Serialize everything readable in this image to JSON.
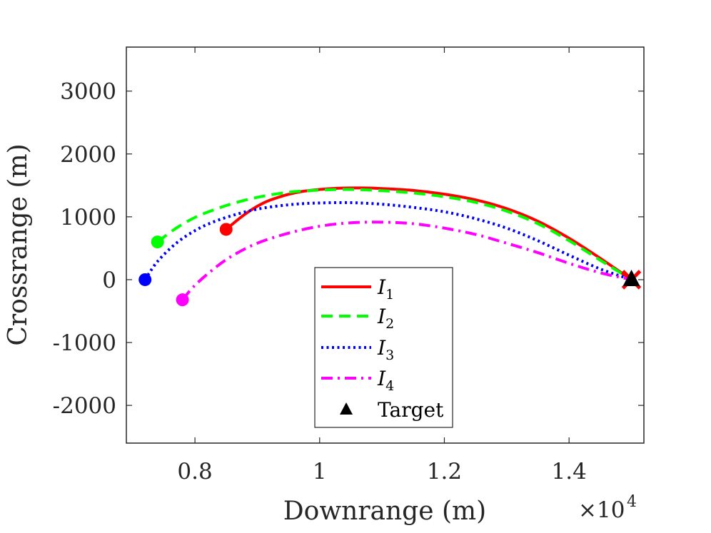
{
  "chart_data": {
    "type": "line",
    "xlabel": "Downrange (m)",
    "ylabel": "Crossrange (m)",
    "x_exponent_label": "×10",
    "x_exponent_power": "4",
    "xlim": [
      6900,
      15200
    ],
    "ylim": [
      -2600,
      3700
    ],
    "xticks": [
      8000,
      10000,
      12000,
      14000
    ],
    "xtick_labels": [
      "0.8",
      "1",
      "1.2",
      "1.4"
    ],
    "yticks": [
      -2000,
      -1000,
      0,
      1000,
      2000,
      3000
    ],
    "ytick_labels": [
      "-2000",
      "-1000",
      "0",
      "1000",
      "2000",
      "3000"
    ],
    "legend_position": "lower-center",
    "series": [
      {
        "name": "I",
        "subscript": "1",
        "color": "#ff0000",
        "style": "solid",
        "x": [
          8500,
          8800,
          9100,
          9400,
          9700,
          10000,
          10300,
          10600,
          11000,
          11500,
          12000,
          12500,
          13000,
          13500,
          14000,
          14500,
          15000
        ],
        "y": [
          800,
          1040,
          1220,
          1330,
          1400,
          1435,
          1455,
          1460,
          1450,
          1420,
          1360,
          1270,
          1130,
          930,
          660,
          340,
          0
        ]
      },
      {
        "name": "I",
        "subscript": "2",
        "color": "#00ff00",
        "style": "dashed",
        "x": [
          7400,
          7700,
          8000,
          8300,
          8600,
          9000,
          9500,
          10000,
          10500,
          11000,
          11500,
          12000,
          12500,
          13000,
          13500,
          14000,
          14500,
          15000
        ],
        "y": [
          600,
          820,
          990,
          1110,
          1210,
          1310,
          1390,
          1425,
          1435,
          1415,
          1380,
          1320,
          1230,
          1090,
          890,
          620,
          310,
          0
        ]
      },
      {
        "name": "I",
        "subscript": "3",
        "color": "#0000ff",
        "style": "dotted",
        "x": [
          7200,
          7400,
          7700,
          8000,
          8300,
          8700,
          9100,
          9600,
          10000,
          10500,
          11000,
          11500,
          12000,
          12500,
          13000,
          13500,
          14000,
          14500,
          15000
        ],
        "y": [
          0,
          290,
          580,
          780,
          920,
          1050,
          1140,
          1200,
          1220,
          1225,
          1200,
          1150,
          1080,
          970,
          820,
          620,
          390,
          170,
          0
        ]
      },
      {
        "name": "I",
        "subscript": "4",
        "color": "#ff00ff",
        "style": "dashdot",
        "x": [
          7800,
          8000,
          8300,
          8600,
          9000,
          9500,
          10000,
          10500,
          11000,
          11500,
          12000,
          12500,
          13000,
          13500,
          14000,
          14500,
          15000
        ],
        "y": [
          -320,
          -90,
          170,
          380,
          580,
          740,
          850,
          905,
          915,
          890,
          820,
          720,
          580,
          430,
          260,
          110,
          0
        ]
      }
    ],
    "start_markers": [
      {
        "series": 1,
        "x": 8500,
        "y": 800,
        "color": "#ff0000"
      },
      {
        "series": 2,
        "x": 7400,
        "y": 600,
        "color": "#00ff00"
      },
      {
        "series": 3,
        "x": 7200,
        "y": 0,
        "color": "#0000ff"
      },
      {
        "series": 4,
        "x": 7800,
        "y": -320,
        "color": "#ff00ff"
      }
    ],
    "end_marker": {
      "x": 15000,
      "y": 0,
      "color": "#ff0000",
      "shape": "x"
    },
    "target": {
      "label": "Target",
      "x": 15000,
      "y": 0,
      "color": "#000000",
      "shape": "triangle"
    }
  }
}
